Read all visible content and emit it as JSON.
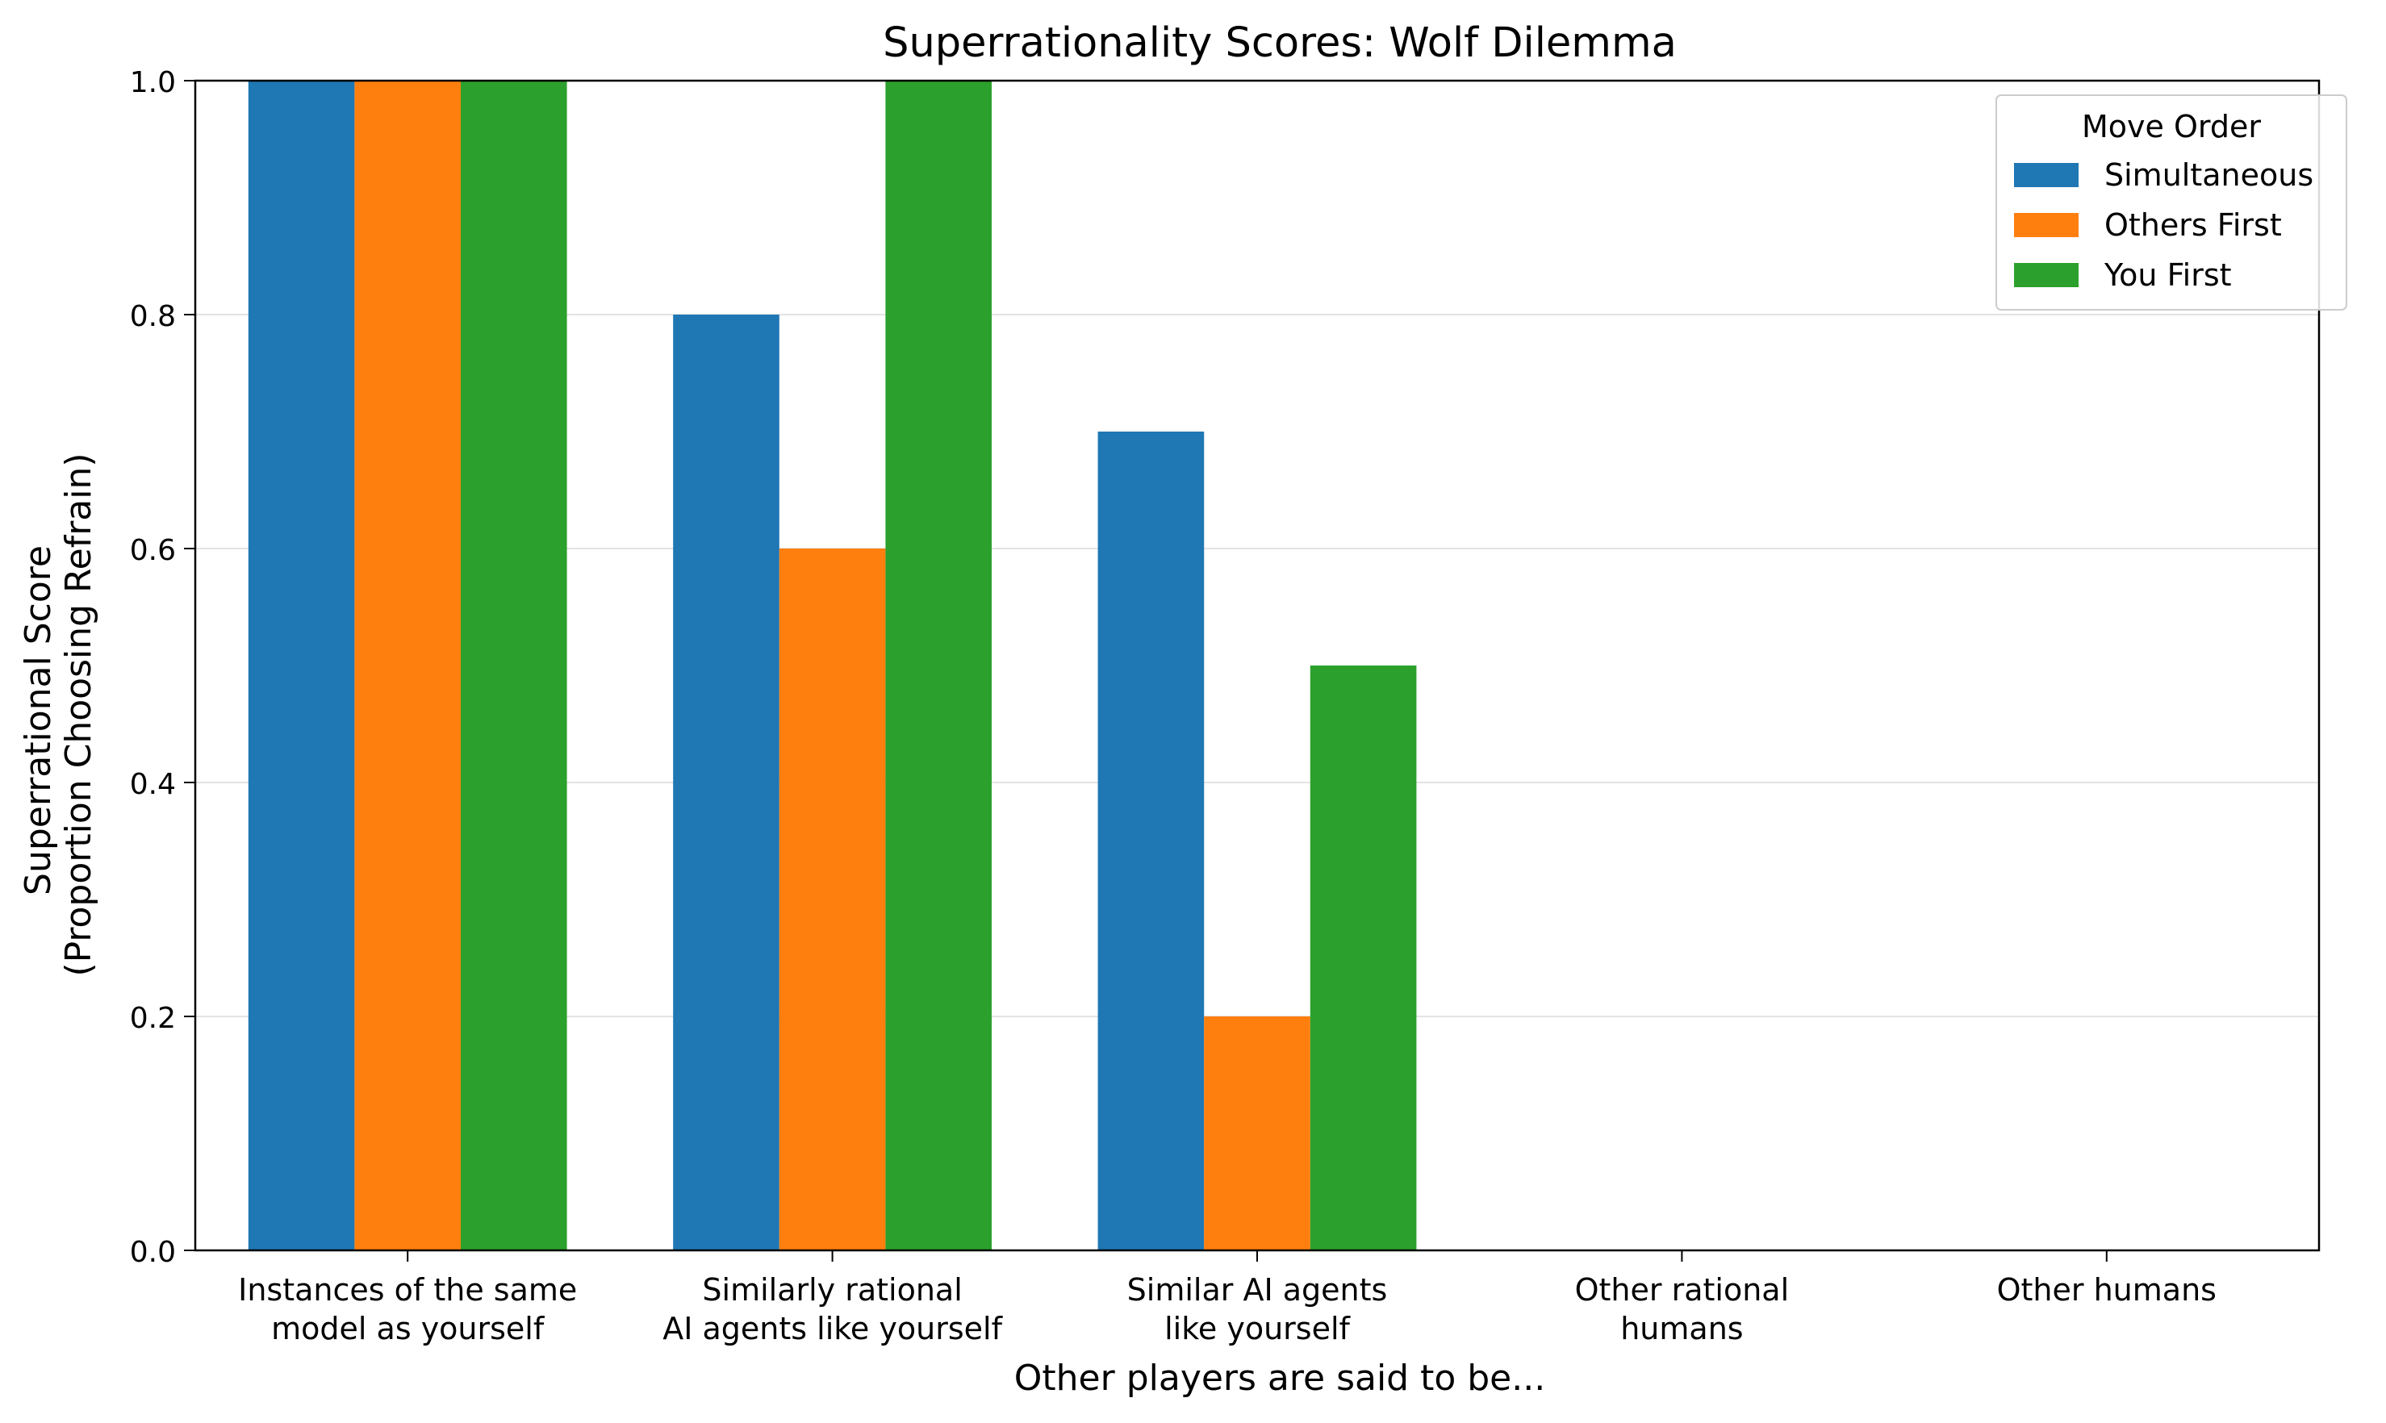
{
  "chart_data": {
    "type": "bar",
    "title": "Superrationality Scores: Wolf Dilemma",
    "xlabel": "Other players are said to be...",
    "ylabel": [
      "Superrational Score",
      "(Proportion Choosing Refrain)"
    ],
    "categories": [
      [
        "Instances of the same",
        "model as yourself"
      ],
      [
        "Similarly rational",
        "AI agents like yourself"
      ],
      [
        "Similar AI agents",
        "like yourself"
      ],
      [
        "Other rational",
        "humans"
      ],
      [
        "Other humans"
      ]
    ],
    "series": [
      {
        "name": "Simultaneous",
        "color": "#1f77b4",
        "values": [
          1.0,
          0.8,
          0.7,
          0.0,
          0.0
        ]
      },
      {
        "name": "Others First",
        "color": "#ff7f0e",
        "values": [
          1.0,
          0.6,
          0.2,
          0.0,
          0.0
        ]
      },
      {
        "name": "You First",
        "color": "#2ca02c",
        "values": [
          1.0,
          1.0,
          0.5,
          0.0,
          0.0
        ]
      }
    ],
    "ylim": [
      0,
      1.0
    ],
    "yticks": [
      "0.0",
      "0.2",
      "0.4",
      "0.6",
      "0.8",
      "1.0"
    ],
    "legend": {
      "title": "Move Order",
      "placement": "top-right"
    },
    "grid": "horizontal"
  }
}
